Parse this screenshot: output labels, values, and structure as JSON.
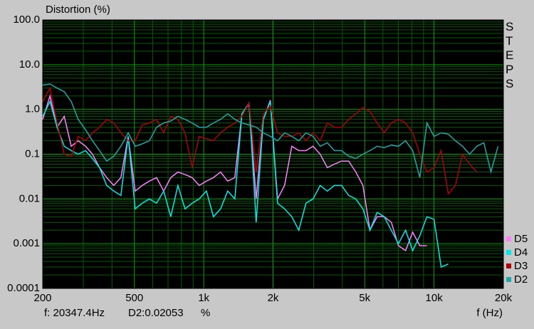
{
  "chart_data": {
    "type": "line",
    "title": "Distortion (%)",
    "xlabel": "f (Hz)",
    "side_label": "STEPS",
    "cursor_frequency": "f: 20347.4Hz",
    "cursor_value": "D2:0.02053",
    "cursor_unit": "%",
    "xscale": "log",
    "yscale": "log",
    "grid": true,
    "legend": "right",
    "xlim": [
      200,
      20000
    ],
    "ylim": [
      0.0001,
      100
    ],
    "xticks": [
      200,
      500,
      {
        "value": 1000,
        "label": "1k"
      },
      {
        "value": 2000,
        "label": "2k"
      },
      {
        "value": 5000,
        "label": "5k"
      },
      {
        "value": 10000,
        "label": "10k"
      },
      {
        "value": 20000,
        "label": "20k"
      }
    ],
    "yticks": [
      0.0001,
      0.001,
      0.01,
      0.1,
      {
        "value": 1,
        "label": "1.0"
      },
      {
        "value": 10,
        "label": "10.0"
      },
      {
        "value": 100,
        "label": "100.0"
      }
    ],
    "x": [
      200,
      215,
      231,
      248,
      266,
      285,
      307,
      329,
      353,
      379,
      407,
      437,
      470,
      504,
      541,
      581,
      624,
      670,
      719,
      773,
      829,
      891,
      956,
      1027,
      1102,
      1184,
      1271,
      1365,
      1465,
      1573,
      1689,
      1814,
      1947,
      2091,
      2245,
      2411,
      2588,
      2779,
      2984,
      3204,
      3440,
      3694,
      3966,
      4258,
      4572,
      4909,
      5271,
      5660,
      6077,
      6525,
      7006,
      7523,
      8077,
      8673,
      9312,
      10000,
      10736,
      11527,
      12377,
      13289,
      14269,
      15321,
      16450,
      17663,
      18965
    ],
    "series": [
      {
        "name": "D5",
        "color": "#ff80ff",
        "values": [
          0.6,
          2.0,
          0.4,
          0.7,
          0.15,
          0.2,
          0.15,
          0.1,
          0.05,
          0.03,
          0.02,
          0.03,
          0.25,
          0.015,
          0.02,
          0.025,
          0.03,
          0.015,
          0.03,
          0.04,
          0.035,
          0.03,
          0.02,
          0.025,
          0.03,
          0.04,
          0.025,
          0.03,
          0.8,
          1.3,
          0.01,
          0.6,
          1.6,
          0.01,
          0.02,
          0.15,
          0.12,
          0.12,
          0.15,
          0.1,
          0.05,
          0.06,
          0.07,
          0.07,
          0.04,
          0.02,
          0.002,
          0.004,
          0.004,
          0.003,
          0.0009,
          0.0007,
          0.0018,
          0.0009,
          0.0009,
          null,
          null,
          null,
          null,
          null,
          null,
          null,
          null,
          null,
          null
        ]
      },
      {
        "name": "D4",
        "color": "#00e8e8",
        "values": [
          0.7,
          1.5,
          0.4,
          0.15,
          0.12,
          0.1,
          0.12,
          0.08,
          0.05,
          0.02,
          0.015,
          0.012,
          0.25,
          0.006,
          0.008,
          0.01,
          0.008,
          0.015,
          0.004,
          0.02,
          0.006,
          0.008,
          0.01,
          0.015,
          0.004,
          0.006,
          0.015,
          0.01,
          0.8,
          1.4,
          0.003,
          0.6,
          1.5,
          0.008,
          0.006,
          0.004,
          0.002,
          0.008,
          0.01,
          0.02,
          0.015,
          0.02,
          0.02,
          0.012,
          0.01,
          0.006,
          0.002,
          0.005,
          0.004,
          0.002,
          0.001,
          0.002,
          0.0007,
          0.0015,
          0.004,
          0.0035,
          0.0003,
          0.00035,
          null,
          null,
          null,
          null,
          null,
          null,
          null
        ]
      },
      {
        "name": "D3",
        "color": "#b00000",
        "values": [
          1.5,
          3.0,
          0.5,
          0.1,
          0.09,
          0.25,
          0.2,
          0.3,
          0.4,
          0.6,
          0.5,
          0.3,
          0.2,
          0.2,
          0.45,
          0.5,
          0.6,
          0.3,
          0.7,
          0.6,
          0.3,
          0.05,
          0.25,
          0.22,
          0.2,
          0.3,
          0.4,
          0.5,
          0.7,
          1.4,
          0.04,
          0.8,
          1.2,
          0.3,
          0.25,
          0.25,
          0.3,
          0.2,
          0.3,
          0.2,
          0.5,
          0.4,
          0.4,
          0.6,
          0.8,
          1.1,
          0.9,
          0.5,
          0.3,
          0.5,
          0.6,
          0.5,
          0.3,
          0.1,
          0.04,
          0.05,
          0.12,
          0.013,
          0.02,
          0.1,
          0.06,
          0.04,
          null,
          null,
          null
        ]
      },
      {
        "name": "D2",
        "color": "#20a8a8",
        "values": [
          3.5,
          3.7,
          3.0,
          2.5,
          1.5,
          0.6,
          0.35,
          0.2,
          0.12,
          0.07,
          0.09,
          0.15,
          0.3,
          0.15,
          0.17,
          0.2,
          0.4,
          0.5,
          0.55,
          0.7,
          0.6,
          0.5,
          0.4,
          0.4,
          0.5,
          0.6,
          0.8,
          0.6,
          0.5,
          0.45,
          0.4,
          0.3,
          0.25,
          0.2,
          0.3,
          0.25,
          0.2,
          0.3,
          0.25,
          0.15,
          0.18,
          0.12,
          0.12,
          0.09,
          0.08,
          0.1,
          0.12,
          0.15,
          0.14,
          0.16,
          0.15,
          0.2,
          0.12,
          0.03,
          0.5,
          0.25,
          0.3,
          0.28,
          0.2,
          0.15,
          0.1,
          0.15,
          0.18,
          0.04,
          0.15
        ]
      }
    ]
  }
}
